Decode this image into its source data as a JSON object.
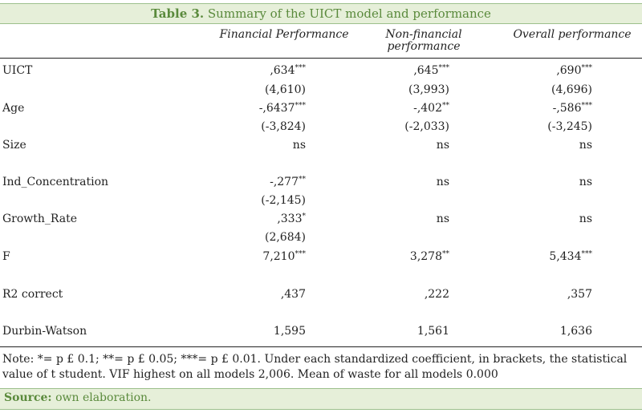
{
  "caption": {
    "label": "Table 3.",
    "text": "Summary of the UICT model and performance"
  },
  "headers": {
    "col1": "Financial Performance",
    "col2_line1": "Non-financial",
    "col2_line2": "performance",
    "col3": "Overall performance"
  },
  "rows": [
    {
      "label": "UICT",
      "v1": ",634",
      "s1": "***",
      "v2": ",645",
      "s2": "***",
      "v3": ",690",
      "s3": "***"
    },
    {
      "label": "",
      "v1": "(4,610)",
      "v2": "(3,993)",
      "v3": "(4,696)"
    },
    {
      "label": "Age",
      "v1": "-,6437",
      "s1": "***",
      "v2": "-,402",
      "s2": "**",
      "v3": "-,586",
      "s3": "***"
    },
    {
      "label": "",
      "v1": "(-3,824)",
      "v2": "(-2,033)",
      "v3": "(-3,245)"
    },
    {
      "label": "Size",
      "v1": "ns",
      "v2": "ns",
      "v3": "ns"
    },
    {
      "label": "Ind_Concentration",
      "v1": "-,277",
      "s1": "**",
      "v2": "ns",
      "v3": "ns"
    },
    {
      "label": "",
      "v1": "(-2,145)"
    },
    {
      "label": "Growth_Rate",
      "v1": ",333",
      "s1": "*",
      "v2": "ns",
      "v3": "ns"
    },
    {
      "label": "",
      "v1": "(2,684)"
    },
    {
      "label": "F",
      "v1": "7,210",
      "s1": "***",
      "v2": "3,278",
      "s2": "**",
      "v3": "5,434",
      "s3": "***"
    },
    {
      "label": "R2 correct",
      "v1": ",437",
      "v2": ",222",
      "v3": ",357"
    },
    {
      "label": "Durbin-Watson",
      "v1": "1,595",
      "v2": "1,561",
      "v3": "1,636"
    }
  ],
  "note": "Note: *= p £ 0.1; **= p £ 0.05; ***= p £ 0.01. Under each standardized coefficient, in brackets, the statistical value of t student. VIF highest on all models 2,006. Mean of waste for all models 0.000",
  "source": {
    "label": "Source:",
    "text": "own elaboration."
  },
  "colors": {
    "accent": "#5a8a3c",
    "caption_bg": "#e6efd9",
    "rule": "#9cc08c"
  }
}
